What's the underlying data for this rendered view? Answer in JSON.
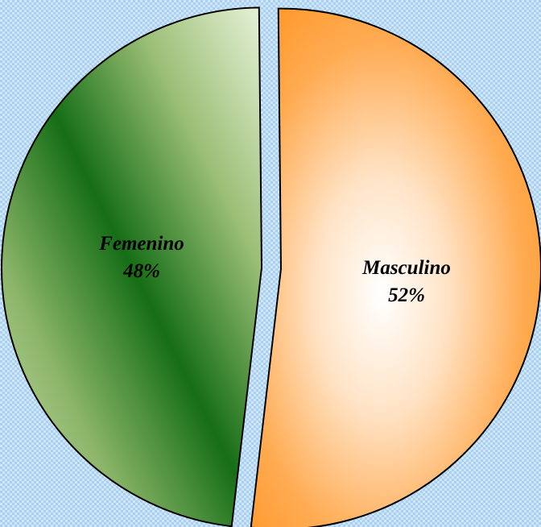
{
  "chart_data": {
    "type": "pie",
    "title": "",
    "slices": [
      {
        "label": "Masculino",
        "percent_label": "52%",
        "value": 52
      },
      {
        "label": "Femenino",
        "percent_label": "48%",
        "value": 48
      }
    ],
    "exploded": true,
    "legend": "none",
    "fills": {
      "Masculino": [
        "#ffffff",
        "#ff9a2e"
      ],
      "Femenino": [
        "#e6f2d8",
        "#166e16"
      ]
    },
    "outline_color": "#000000"
  }
}
